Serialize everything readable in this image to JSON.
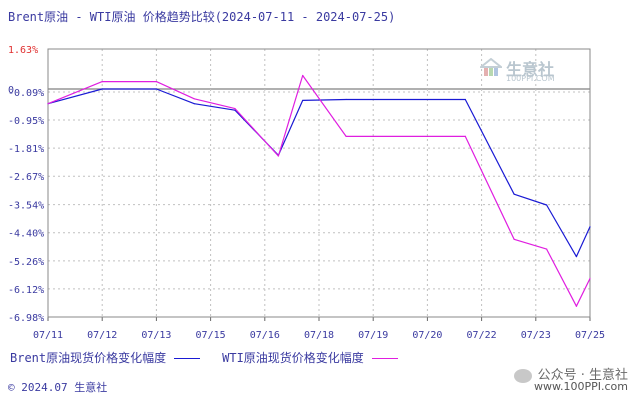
{
  "title": "Brent原油 - WTI原油 价格趋势比较(2024-07-11 - 2024-07-25)",
  "legend": {
    "brent_label": "Brent原油现货价格变化幅度",
    "wti_label": "WTI原油现货价格变化幅度"
  },
  "footer": "© 2024.07 生意社",
  "source_text": "公众号 · 生意社",
  "watermark_url": "www.100PPI.com",
  "logo": {
    "brand": "生意社",
    "site": "100PPI.COM"
  },
  "colors": {
    "brent": "#1a1ad4",
    "wti": "#e01ee0",
    "axis_text": "#3a3aa0",
    "top_tick": "#e03030",
    "grid": "#c0c0c0",
    "zero_line": "#808080"
  },
  "chart_data": {
    "type": "line",
    "title": "Brent原油 - WTI原油 价格趋势比较(2024-07-11 - 2024-07-25)",
    "xlabel": "",
    "ylabel": "",
    "categories": [
      "07/11",
      "07/12",
      "07/13",
      "07/15",
      "07/16",
      "07/18",
      "07/19",
      "07/20",
      "07/22",
      "07/23",
      "07/25"
    ],
    "x_ticks": [
      "07/11",
      "07/12",
      "07/13",
      "07/15",
      "07/16",
      "07/18",
      "07/19",
      "07/20",
      "07/22",
      "07/23",
      "07/25"
    ],
    "y_ticks": [
      "1.63%",
      "0",
      "-0.09%",
      "-0.95%",
      "-1.81%",
      "-2.67%",
      "-3.54%",
      "-4.40%",
      "-5.26%",
      "-6.12%",
      "-6.98%"
    ],
    "y_tick_values": [
      1.63,
      0,
      -0.09,
      -0.95,
      -1.81,
      -2.67,
      -3.54,
      -4.4,
      -5.26,
      -6.12,
      -6.98
    ],
    "ylim": [
      -6.98,
      1.63
    ],
    "grid": true,
    "legend_position": "bottom",
    "x": [
      0,
      1,
      2,
      2.7,
      3.45,
      4.25,
      4.7,
      5.5,
      6,
      7.7,
      8.6,
      9.2,
      9.75,
      10
    ],
    "series": [
      {
        "name": "Brent原油现货价格变化幅度",
        "color": "#1a1ad4",
        "values": [
          -0.45,
          0,
          0,
          -0.45,
          -0.65,
          -2.03,
          -0.35,
          -0.32,
          -0.32,
          -0.32,
          -3.22,
          -3.55,
          -5.13,
          -4.22
        ]
      },
      {
        "name": "WTI原油现货价格变化幅度",
        "color": "#e01ee0",
        "values": [
          -0.45,
          0.3,
          0.3,
          -0.3,
          -0.6,
          -2.05,
          0.55,
          -1.45,
          -1.45,
          -1.45,
          -4.6,
          -4.9,
          -6.65,
          -5.8
        ]
      }
    ]
  }
}
